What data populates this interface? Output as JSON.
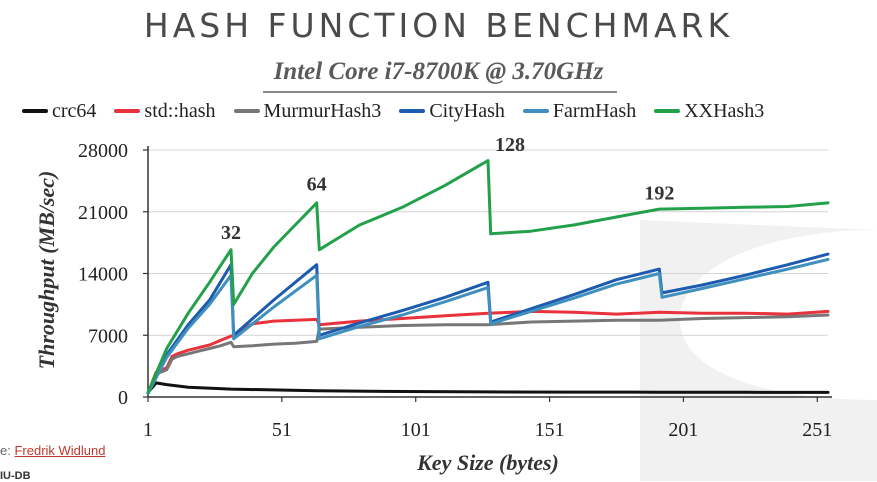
{
  "header": {
    "title": "HASH FUNCTION BENCHMARK",
    "subtitle": "Intel Core i7-8700K @ 3.70GHz"
  },
  "footer": {
    "source_prefix": "e:",
    "source_link": "Fredrik Widlund",
    "mark": "IU-DB"
  },
  "colors": {
    "crc64": "#111111",
    "std::hash": "#e8323c",
    "MurmurHash3": "#777777",
    "CityHash": "#1d5bb0",
    "FarmHash": "#3f8fbf",
    "XXHash3": "#22a04a"
  },
  "chart_data": {
    "type": "line",
    "title": "HASH FUNCTION BENCHMARK",
    "subtitle": "Intel Core i7-8700K @ 3.70GHz",
    "xlabel": "Key Size (bytes)",
    "ylabel": "Throughput (MB/sec)",
    "xlim": [
      1,
      255
    ],
    "ylim": [
      0,
      28000
    ],
    "xticks": [
      1,
      51,
      101,
      151,
      201,
      251
    ],
    "yticks": [
      0,
      7000,
      14000,
      21000,
      28000
    ],
    "ytick_labels": [
      "0",
      "7000",
      "14000",
      "21000",
      "28000"
    ],
    "grid": "horizontal",
    "legend": "top",
    "annotations": [
      {
        "text": "32",
        "x": 32,
        "y": 17000
      },
      {
        "text": "64",
        "x": 64,
        "y": 22500
      },
      {
        "text": "128",
        "x": 128,
        "y": 27000
      },
      {
        "text": "192",
        "x": 192,
        "y": 21500
      }
    ],
    "series": [
      {
        "name": "crc64",
        "x": [
          1,
          4,
          8,
          16,
          32,
          64,
          96,
          128,
          160,
          192,
          224,
          255
        ],
        "values": [
          500,
          1600,
          1400,
          1100,
          900,
          700,
          620,
          580,
          560,
          540,
          530,
          520
        ]
      },
      {
        "name": "std::hash",
        "x": [
          1,
          4,
          8,
          10,
          12,
          16,
          20,
          24,
          28,
          32,
          33,
          40,
          48,
          56,
          64,
          65,
          80,
          96,
          112,
          128,
          144,
          160,
          176,
          192,
          208,
          224,
          240,
          255
        ],
        "values": [
          400,
          2800,
          3300,
          4600,
          4900,
          5300,
          5600,
          5900,
          6400,
          6900,
          7000,
          8300,
          8600,
          8700,
          8800,
          8200,
          8600,
          8900,
          9200,
          9500,
          9700,
          9600,
          9400,
          9600,
          9500,
          9500,
          9400,
          9700
        ]
      },
      {
        "name": "MurmurHash3",
        "x": [
          1,
          4,
          8,
          10,
          12,
          16,
          20,
          24,
          28,
          32,
          33,
          40,
          48,
          56,
          64,
          65,
          80,
          96,
          112,
          128,
          144,
          160,
          176,
          192,
          208,
          224,
          240,
          255
        ],
        "values": [
          400,
          2600,
          3100,
          4300,
          4600,
          4900,
          5200,
          5500,
          5800,
          6200,
          5700,
          5800,
          6000,
          6100,
          6300,
          7700,
          7900,
          8100,
          8200,
          8200,
          8500,
          8600,
          8700,
          8700,
          8900,
          9000,
          9100,
          9300
        ]
      },
      {
        "name": "CityHash",
        "x": [
          1,
          8,
          16,
          24,
          32,
          33,
          48,
          64,
          65,
          80,
          96,
          112,
          128,
          129,
          144,
          160,
          176,
          192,
          193,
          208,
          224,
          240,
          255
        ],
        "values": [
          400,
          4800,
          8200,
          11000,
          15000,
          7000,
          11000,
          15000,
          7000,
          8400,
          9800,
          11300,
          13000,
          8500,
          10000,
          11600,
          13300,
          14500,
          11800,
          12700,
          13800,
          15000,
          16200
        ]
      },
      {
        "name": "FarmHash",
        "x": [
          1,
          8,
          16,
          24,
          32,
          33,
          48,
          64,
          65,
          80,
          96,
          112,
          128,
          129,
          144,
          160,
          176,
          192,
          193,
          208,
          224,
          240,
          255
        ],
        "values": [
          400,
          4500,
          7800,
          10500,
          13800,
          6600,
          10200,
          13800,
          6600,
          8000,
          9300,
          10800,
          12400,
          8300,
          9700,
          11200,
          12800,
          14000,
          11300,
          12300,
          13400,
          14500,
          15600
        ]
      },
      {
        "name": "XXHash3",
        "x": [
          1,
          8,
          16,
          24,
          32,
          33,
          40,
          48,
          56,
          64,
          65,
          80,
          96,
          112,
          128,
          129,
          144,
          160,
          176,
          192,
          208,
          224,
          240,
          255
        ],
        "values": [
          500,
          5500,
          9500,
          13000,
          16700,
          10500,
          14000,
          17000,
          19500,
          22000,
          16700,
          19500,
          21500,
          24000,
          26800,
          18500,
          18800,
          19500,
          20400,
          21300,
          21400,
          21500,
          21600,
          22000
        ]
      }
    ]
  }
}
